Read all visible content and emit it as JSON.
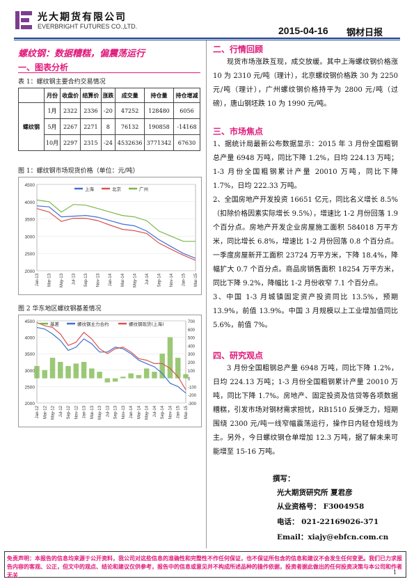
{
  "header": {
    "company_cn": "光大期货有限公司",
    "company_en": "EVERBRIGHT FUTURES CO.,LTD.",
    "date": "2015-04-16",
    "report_type": "钢材日报"
  },
  "title": "螺纹钢：数据糟糕，偏震荡运行",
  "sections": {
    "s1": "一、图表分析",
    "s2": "二、行情回顾",
    "s3": "三、市场焦点",
    "s4": "四、研究观点"
  },
  "table1": {
    "caption": "表 1：螺纹钢主要合约交易情况",
    "headers": [
      "月份",
      "收盘价",
      "结算价",
      "涨跌",
      "成交量",
      "持仓量",
      "持仓增减"
    ],
    "row_label": "螺纹钢",
    "rows": [
      [
        "1月",
        "2322",
        "2336",
        "-20",
        "47252",
        "128480",
        "6056"
      ],
      [
        "5月",
        "2267",
        "2271",
        "8",
        "76132",
        "190858",
        "-14168"
      ],
      [
        "10月",
        "2297",
        "2315",
        "-24",
        "4532636",
        "3771342",
        "67630"
      ]
    ]
  },
  "chart1": {
    "caption": "图 1：螺纹钢市场现货价格（单位：元/吨）",
    "chart_data": {
      "type": "line",
      "x": [
        "Jan-13",
        "Mar-13",
        "May-13",
        "Jul-13",
        "Sep-13",
        "Nov-13",
        "Jan-14",
        "Mar-14",
        "May-14",
        "Jul-14",
        "Sep-14",
        "Nov-14",
        "Jan-15",
        "Mar-15"
      ],
      "ylim": [
        2000,
        4500
      ],
      "yticks": [
        "4500",
        "4000",
        "3500",
        "3000",
        "2500",
        "2000"
      ],
      "series": [
        {
          "name": "上海",
          "color": "#3f6fd0",
          "values": [
            3880,
            3850,
            3560,
            3580,
            3600,
            3550,
            3450,
            3350,
            3300,
            3150,
            2900,
            2700,
            2500,
            2360
          ]
        },
        {
          "name": "北京",
          "color": "#d9534f",
          "values": [
            3800,
            3700,
            3430,
            3520,
            3520,
            3450,
            3320,
            3200,
            3160,
            3080,
            2800,
            2620,
            2450,
            2300
          ]
        },
        {
          "name": "广州",
          "color": "#7ab648",
          "values": [
            4050,
            4000,
            3700,
            3920,
            3900,
            3800,
            3700,
            3600,
            3560,
            3450,
            3150,
            3000,
            2850,
            2850
          ]
        }
      ]
    }
  },
  "chart2": {
    "caption": "图 2  华东地区螺纹钢基差情况",
    "chart_data": {
      "type": "line",
      "x": [
        "Jan-12",
        "Mar-12",
        "May-12",
        "Jul-12",
        "Sep-12",
        "Nov-12",
        "Jan-13",
        "Mar-13",
        "May-13",
        "Jul-13",
        "Sep-13",
        "Nov-13",
        "Jan-14",
        "Mar-14",
        "May-14",
        "Jul-14",
        "Sep-14",
        "Nov-14",
        "Jan-15",
        "Mar-15"
      ],
      "ylim": [
        2000,
        4500
      ],
      "y2lim": [
        -300,
        700
      ],
      "yticks": [
        "4500",
        "4000",
        "3500",
        "3000",
        "2500",
        "2000"
      ],
      "y2ticks": [
        "700",
        "600",
        "500",
        "400",
        "300",
        "200",
        "100",
        "0",
        "-100",
        "-200",
        "-300"
      ],
      "series": [
        {
          "name": "基差",
          "color": "#7ab648",
          "axis": "right",
          "values": [
            150,
            100,
            250,
            200,
            150,
            180,
            200,
            120,
            80,
            -50,
            -40,
            20,
            60,
            40,
            120,
            80,
            300,
            500,
            250,
            50
          ]
        },
        {
          "name": "螺纹钢主力合约",
          "color": "#3f6fd0",
          "axis": "left",
          "values": [
            4300,
            4250,
            4100,
            3900,
            3600,
            3700,
            3950,
            3800,
            3550,
            3550,
            3700,
            3650,
            3500,
            3300,
            3200,
            3100,
            2900,
            2600,
            2500,
            2300
          ]
        },
        {
          "name": "螺纹钢现货(上海)",
          "color": "#d9534f",
          "axis": "left",
          "values": [
            4450,
            4350,
            4300,
            4100,
            3750,
            3850,
            4150,
            3950,
            3650,
            3500,
            3650,
            3700,
            3550,
            3350,
            3300,
            3200,
            3200,
            3050,
            2800,
            2400
          ]
        }
      ]
    }
  },
  "review": {
    "text": "现货市场涨跌互现，成交放缓。其中上海螺纹钢价格涨 10 为 2310 元/吨（理计），北京螺纹钢价格跌 30 为 2250 元/吨（理计），广州螺纹钢价格持平为 2800 元/吨（过磅），唐山钢坯跌 10 为 1990 元/吨。"
  },
  "focus": [
    "1、据统计局最新公布数据显示：2015 年 3 月份全国粗钢总产量 6948 万吨，同比下降 1.2%，日均 224.13 万吨；1-3 月份全国粗钢累计产量 20010 万吨，同比下降 1.7%，日均 222.33 万吨。",
    "2、全国房地产开发投资 16651 亿元，同比名义增长 8.5%（扣除价格因素实际增长 9.5%），增速比 1-2 月份回落 1.9 个百分点。房地产开发企业房屋施工面积 584018 万平方米，同比增长 6.8%，增速比 1-2 月份回落 0.8 个百分点。一季度房屋新开工面积 23724 万平方米，下降 18.4%，降幅扩大 0.7 个百分点。商品房销售面积 18254 万平方米，同比下降 9.2%，降幅比 1-2 月份收窄 7.1 个百分点。",
    "3、中国 1-3 月城镇固定资产投资同比 13.5%，预期 13.9%，前值 13.9%。中国 3 月规模以上工业增加值同比 5.6%，前值 7%。"
  ],
  "opinion": {
    "text": "3 月份全国粗钢总产量 6948 万吨，同比下降 1.2%，日均 224.13 万吨；1-3 月份全国粗钢累计产量 20010 万吨，同比下降 1.7%。房地产、固定投资及信贷等各项数据糟糕，引发市场对钢材需求担忧，RB1510 反弹乏力，短期围绕 2300 元/吨一线窄幅震荡运行，操作日内轻仓短线为主。另外，今日螺纹钢仓单增加 12.3 万吨，据了解未来可能增至 15-16 万吨。"
  },
  "author": {
    "label": "撰写：",
    "name": "光大期货研究所 夏君彦",
    "cert": "从业资格号：  F3004958",
    "phone": "电话：  021-22169026-371",
    "email": "Email：xiajy@ebfcn.com.cn"
  },
  "footer": {
    "disclaimer": "免责声明：本报告的信息均来源于公开资料，我公司对这些信息的准确性和完整性不作任何保证，也不保证所包含的信息和建议不会发生任何变更。我们已力求报告内容的客观、公正，但文中的观点、结论和建议仅供参考，报告中的信息或意见并不构成所述品种的操作依据，投资者据此做出的任何投资决策与本公司和作者无关",
    "page": "1"
  }
}
